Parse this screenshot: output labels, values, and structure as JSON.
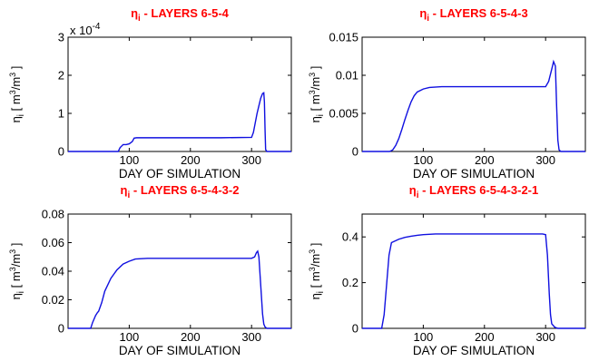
{
  "chart_data": [
    {
      "type": "line",
      "title": "ηi - LAYERS 6-5-4",
      "title_color": "#ff0000",
      "xlabel": "DAY OF SIMULATION",
      "ylabel": "ηi  [ m3/m3 ]",
      "exponent_label": "x 10",
      "exponent_power": "-4",
      "xlim": [
        0,
        365
      ],
      "ylim": [
        0,
        3
      ],
      "xticks": [
        "100",
        "200",
        "300"
      ],
      "xtick_values": [
        100,
        200,
        300
      ],
      "yticks": [
        "0",
        "1",
        "2",
        "3"
      ],
      "ytick_values": [
        0,
        1,
        2,
        3
      ],
      "series_color": "#1010e0",
      "series": [
        {
          "x": [
            0,
            82,
            85,
            90,
            95,
            100,
            105,
            108,
            112,
            150,
            200,
            250,
            300,
            303,
            306,
            309,
            312,
            315,
            318,
            320,
            321,
            322,
            323,
            325,
            365
          ],
          "y": [
            0,
            0,
            0.1,
            0.18,
            0.18,
            0.2,
            0.26,
            0.35,
            0.36,
            0.36,
            0.36,
            0.36,
            0.37,
            0.5,
            0.75,
            1.0,
            1.2,
            1.4,
            1.52,
            1.54,
            1.3,
            0.6,
            0.05,
            0,
            0
          ]
        }
      ]
    },
    {
      "type": "line",
      "title": "ηi - LAYERS 6-5-4-3",
      "title_color": "#ff0000",
      "xlabel": "DAY OF SIMULATION",
      "ylabel": "ηi  [ m3/m3 ]",
      "xlim": [
        0,
        365
      ],
      "ylim": [
        0,
        0.015
      ],
      "xticks": [
        "100",
        "200",
        "300"
      ],
      "xtick_values": [
        100,
        200,
        300
      ],
      "yticks": [
        "0",
        "0.005",
        "0.01",
        "0.015"
      ],
      "ytick_values": [
        0,
        0.005,
        0.01,
        0.015
      ],
      "series_color": "#1010e0",
      "series": [
        {
          "x": [
            0,
            45,
            50,
            55,
            60,
            65,
            70,
            75,
            80,
            85,
            90,
            100,
            110,
            130,
            150,
            200,
            250,
            300,
            305,
            310,
            313,
            316,
            318,
            320,
            322,
            325,
            365
          ],
          "y": [
            0,
            0,
            0.0002,
            0.0008,
            0.0017,
            0.0029,
            0.0042,
            0.0054,
            0.0065,
            0.0073,
            0.0078,
            0.0082,
            0.0084,
            0.0085,
            0.0085,
            0.0085,
            0.0085,
            0.0085,
            0.0092,
            0.0108,
            0.0118,
            0.0112,
            0.006,
            0.0015,
            0.0002,
            0,
            0
          ]
        }
      ]
    },
    {
      "type": "line",
      "title": "ηi - LAYERS 6-5-4-3-2",
      "title_color": "#ff0000",
      "xlabel": "DAY OF SIMULATION",
      "ylabel": "ηi  [ m3/m3 ]",
      "xlim": [
        0,
        365
      ],
      "ylim": [
        0,
        0.08
      ],
      "xticks": [
        "100",
        "200",
        "300"
      ],
      "xtick_values": [
        100,
        200,
        300
      ],
      "yticks": [
        "0",
        "0.02",
        "0.04",
        "0.06",
        "0.08"
      ],
      "ytick_values": [
        0,
        0.02,
        0.04,
        0.06,
        0.08
      ],
      "series_color": "#1010e0",
      "series": [
        {
          "x": [
            0,
            37,
            40,
            45,
            48,
            50,
            55,
            60,
            70,
            80,
            90,
            100,
            110,
            130,
            150,
            200,
            250,
            300,
            305,
            308,
            310,
            312,
            315,
            318,
            320,
            322,
            325,
            365
          ],
          "y": [
            0,
            0,
            0.004,
            0.009,
            0.011,
            0.012,
            0.018,
            0.026,
            0.035,
            0.041,
            0.045,
            0.047,
            0.0485,
            0.049,
            0.049,
            0.049,
            0.049,
            0.049,
            0.05,
            0.053,
            0.054,
            0.05,
            0.03,
            0.01,
            0.003,
            0.001,
            0,
            0
          ]
        }
      ]
    },
    {
      "type": "line",
      "title": "ηi - LAYERS 6-5-4-3-2-1",
      "title_color": "#ff0000",
      "xlabel": "DAY OF SIMULATION",
      "ylabel": "ηi  [ m3/m3 ]",
      "xlim": [
        0,
        365
      ],
      "ylim": [
        0,
        0.5
      ],
      "xticks": [
        "100",
        "200",
        "300"
      ],
      "xtick_values": [
        100,
        200,
        300
      ],
      "yticks": [
        "0",
        "0.2",
        "0.4"
      ],
      "ytick_values": [
        0,
        0.2,
        0.4
      ],
      "series_color": "#1010e0",
      "series": [
        {
          "x": [
            0,
            32,
            36,
            40,
            44,
            48,
            52,
            60,
            70,
            80,
            90,
            100,
            120,
            150,
            200,
            250,
            295,
            300,
            303,
            306,
            308,
            310,
            315,
            320,
            365
          ],
          "y": [
            0,
            0,
            0.06,
            0.19,
            0.32,
            0.375,
            0.38,
            0.39,
            0.398,
            0.403,
            0.407,
            0.41,
            0.413,
            0.413,
            0.413,
            0.413,
            0.413,
            0.41,
            0.32,
            0.15,
            0.06,
            0.02,
            0.005,
            0,
            0
          ]
        }
      ]
    }
  ]
}
